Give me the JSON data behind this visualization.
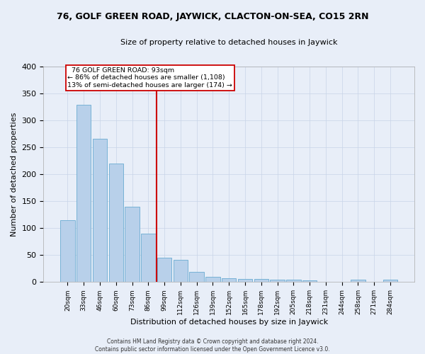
{
  "title1": "76, GOLF GREEN ROAD, JAYWICK, CLACTON-ON-SEA, CO15 2RN",
  "title2": "Size of property relative to detached houses in Jaywick",
  "xlabel": "Distribution of detached houses by size in Jaywick",
  "ylabel": "Number of detached properties",
  "footer1": "Contains HM Land Registry data © Crown copyright and database right 2024.",
  "footer2": "Contains public sector information licensed under the Open Government Licence v3.0.",
  "annotation_line1": "  76 GOLF GREEN ROAD: 93sqm",
  "annotation_line2": "← 86% of detached houses are smaller (1,108)",
  "annotation_line3": "13% of semi-detached houses are larger (174) →",
  "bar_labels": [
    "20sqm",
    "33sqm",
    "46sqm",
    "60sqm",
    "73sqm",
    "86sqm",
    "99sqm",
    "112sqm",
    "126sqm",
    "139sqm",
    "152sqm",
    "165sqm",
    "178sqm",
    "192sqm",
    "205sqm",
    "218sqm",
    "231sqm",
    "244sqm",
    "258sqm",
    "271sqm",
    "284sqm"
  ],
  "bar_values": [
    115,
    328,
    265,
    220,
    140,
    90,
    45,
    41,
    19,
    9,
    7,
    6,
    6,
    4,
    4,
    3,
    0,
    0,
    4,
    0,
    4
  ],
  "bar_color": "#b8d0ea",
  "bar_edge_color": "#6aabd2",
  "bg_color": "#e8eef8",
  "grid_color": "#c8d4e8",
  "red_line_index": 6,
  "red_color": "#cc0000",
  "annotation_box_color": "#ffffff",
  "ylim": [
    0,
    400
  ],
  "yticks": [
    0,
    50,
    100,
    150,
    200,
    250,
    300,
    350,
    400
  ]
}
